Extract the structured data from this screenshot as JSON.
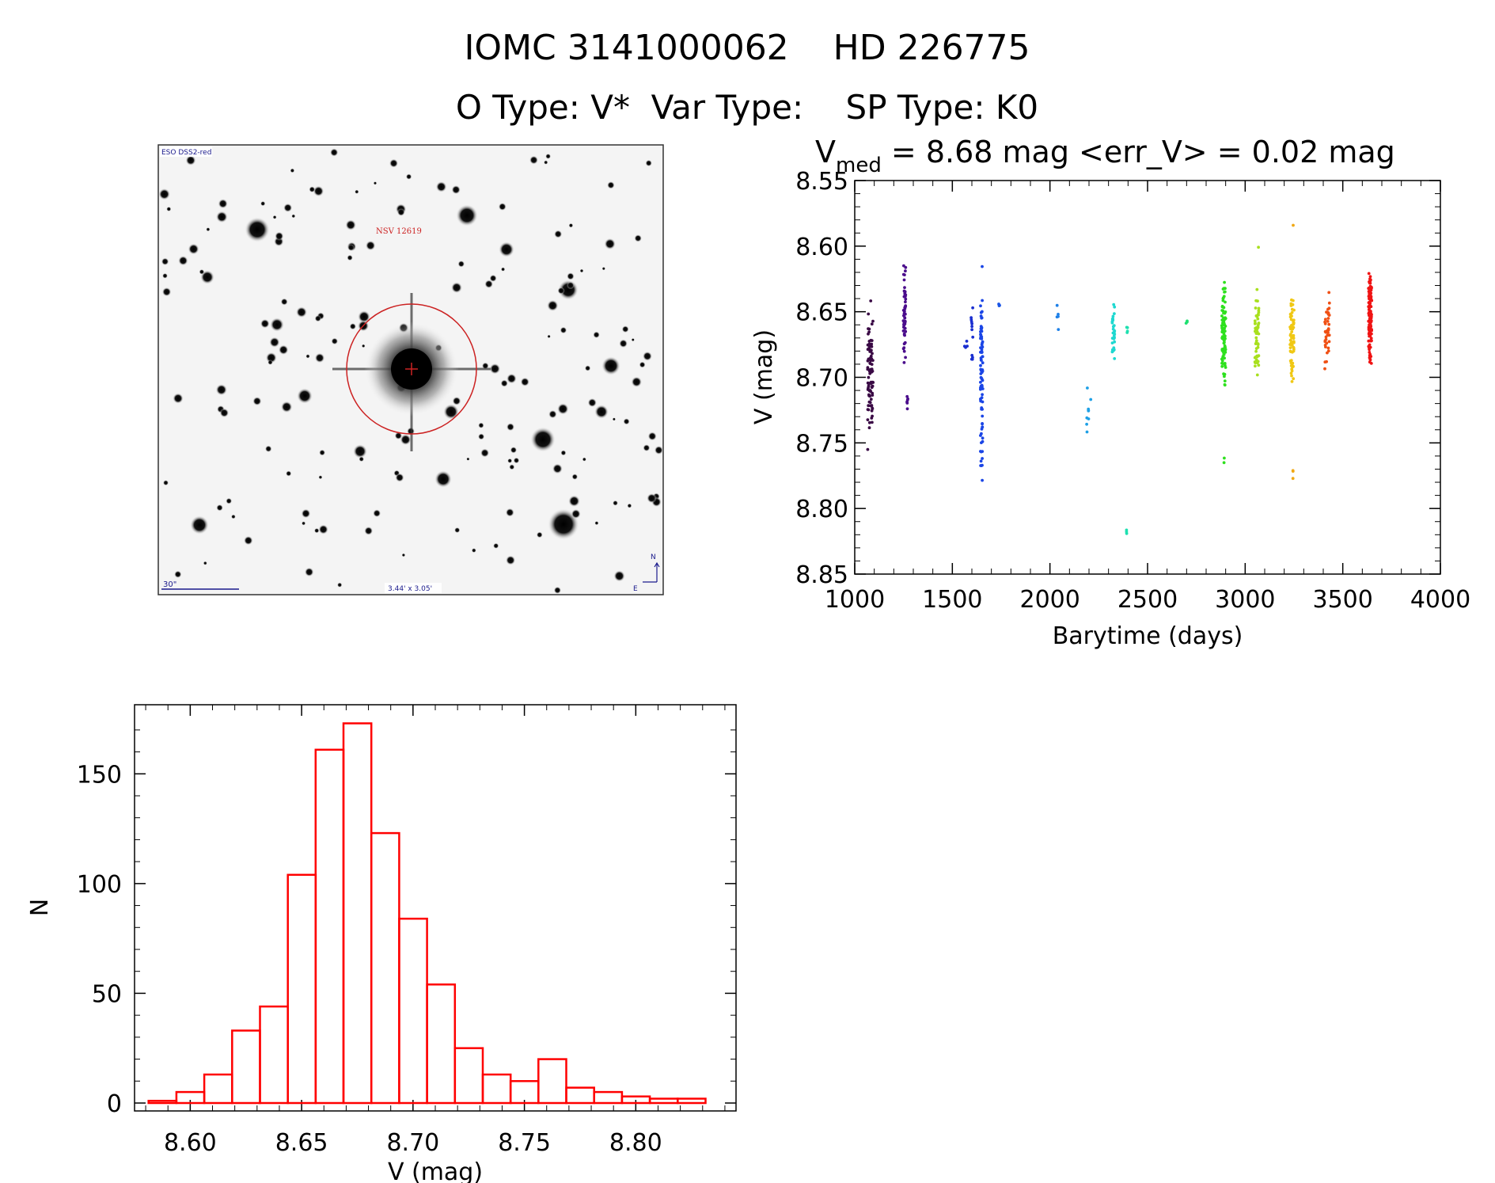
{
  "header": {
    "title_line1": "IOMC 3141000062    HD 226775",
    "title_line2": "O Type: V*  Var Type:    SP Type: K0"
  },
  "finder_chart": {
    "survey_label": "ESO DSS2-red",
    "target_label": "NSV 12619",
    "scale_label": "30\"",
    "fov_label": "3.44' x 3.05'",
    "north_label": "N",
    "east_label": "E"
  },
  "chart_data": [
    {
      "type": "scatter",
      "title_prefix": "V",
      "title_subscript": "med",
      "title_rest": " = 8.68 mag <err_V> = 0.02 mag",
      "xlabel": "Barytime (days)",
      "ylabel": "V (mag)",
      "xlim": [
        1000,
        4000
      ],
      "ylim": [
        8.85,
        8.55
      ],
      "y_reversed": true,
      "xticks": [
        "1000",
        "1500",
        "2000",
        "2500",
        "3000",
        "3500",
        "4000"
      ],
      "yticks": [
        "8.55",
        "8.60",
        "8.65",
        "8.70",
        "8.75",
        "8.80",
        "8.85"
      ],
      "grid": false,
      "clusters": [
        {
          "x": 1080,
          "xspread": 14,
          "ymin": 8.635,
          "ymax": 8.76,
          "n": 90,
          "color": "#3a0a45"
        },
        {
          "x": 1255,
          "xspread": 6,
          "ymin": 8.605,
          "ymax": 8.7,
          "n": 55,
          "color": "#4b0d8c"
        },
        {
          "x": 1270,
          "xspread": 3,
          "ymin": 8.71,
          "ymax": 8.725,
          "n": 6,
          "color": "#4b0d8c"
        },
        {
          "x": 1570,
          "xspread": 8,
          "ymin": 8.67,
          "ymax": 8.68,
          "n": 4,
          "color": "#1a2fd0"
        },
        {
          "x": 1600,
          "xspread": 6,
          "ymin": 8.625,
          "ymax": 8.71,
          "n": 12,
          "color": "#1a2fd0"
        },
        {
          "x": 1650,
          "xspread": 6,
          "ymin": 8.6,
          "ymax": 8.8,
          "n": 90,
          "color": "#1a45e6"
        },
        {
          "x": 1740,
          "xspread": 3,
          "ymin": 8.643,
          "ymax": 8.648,
          "n": 3,
          "color": "#1a55e6"
        },
        {
          "x": 2040,
          "xspread": 4,
          "ymin": 8.64,
          "ymax": 8.672,
          "n": 5,
          "color": "#1e80e8"
        },
        {
          "x": 2200,
          "xspread": 12,
          "ymin": 8.7,
          "ymax": 8.755,
          "n": 9,
          "color": "#1ea0e6"
        },
        {
          "x": 2325,
          "xspread": 6,
          "ymin": 8.635,
          "ymax": 8.695,
          "n": 30,
          "color": "#1ed8d0"
        },
        {
          "x": 2395,
          "xspread": 5,
          "ymin": 8.655,
          "ymax": 8.672,
          "n": 4,
          "color": "#1ee0b0"
        },
        {
          "x": 2395,
          "xspread": 3,
          "ymin": 8.813,
          "ymax": 8.822,
          "n": 3,
          "color": "#1ee0b0"
        },
        {
          "x": 2700,
          "xspread": 3,
          "ymin": 8.648,
          "ymax": 8.668,
          "n": 3,
          "color": "#1ee070"
        },
        {
          "x": 2890,
          "xspread": 10,
          "ymin": 8.61,
          "ymax": 8.725,
          "n": 95,
          "color": "#2ee01e"
        },
        {
          "x": 2890,
          "xspread": 3,
          "ymin": 8.752,
          "ymax": 8.768,
          "n": 2,
          "color": "#2ee01e"
        },
        {
          "x": 3060,
          "xspread": 10,
          "ymin": 8.625,
          "ymax": 8.71,
          "n": 55,
          "color": "#a8e01e"
        },
        {
          "x": 3065,
          "xspread": 3,
          "ymin": 8.6,
          "ymax": 8.602,
          "n": 1,
          "color": "#a8e01e"
        },
        {
          "x": 3240,
          "xspread": 10,
          "ymin": 8.615,
          "ymax": 8.715,
          "n": 70,
          "color": "#f0c814"
        },
        {
          "x": 3245,
          "xspread": 3,
          "ymin": 8.583,
          "ymax": 8.585,
          "n": 1,
          "color": "#f0a814"
        },
        {
          "x": 3245,
          "xspread": 3,
          "ymin": 8.758,
          "ymax": 8.785,
          "n": 3,
          "color": "#f0a814"
        },
        {
          "x": 3420,
          "xspread": 12,
          "ymin": 8.62,
          "ymax": 8.7,
          "n": 40,
          "color": "#f05014"
        },
        {
          "x": 3640,
          "xspread": 8,
          "ymin": 8.603,
          "ymax": 8.705,
          "n": 110,
          "color": "#f01414"
        }
      ]
    },
    {
      "type": "bar",
      "subtype": "histogram",
      "xlabel": "V (mag)",
      "ylabel": "N",
      "xlim": [
        8.575,
        8.845
      ],
      "ylim": [
        0,
        175
      ],
      "xticks": [
        "8.60",
        "8.65",
        "8.70",
        "8.75",
        "8.80"
      ],
      "yticks": [
        "0",
        "50",
        "100",
        "150"
      ],
      "bin_width": 0.0125,
      "bin_starts": [
        8.5813,
        8.5938,
        8.6063,
        8.6188,
        8.6313,
        8.6438,
        8.6563,
        8.6688,
        8.6813,
        8.6938,
        8.7063,
        8.7188,
        8.7313,
        8.7438,
        8.7563,
        8.7688,
        8.7813,
        8.7938,
        8.8063,
        8.8188
      ],
      "values": [
        1,
        5,
        13,
        33,
        44,
        104,
        161,
        173,
        123,
        84,
        54,
        25,
        13,
        10,
        20,
        7,
        5,
        3,
        2,
        2
      ],
      "color": "#ff0000"
    }
  ]
}
